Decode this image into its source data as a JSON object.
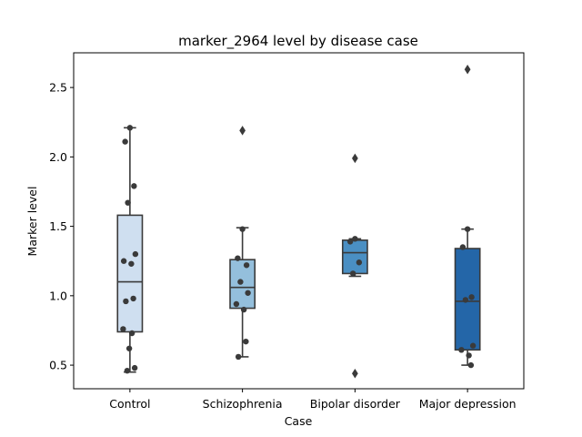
{
  "chart_data": {
    "type": "box",
    "title": "marker_2964 level by disease case",
    "xlabel": "Case",
    "ylabel": "Marker level",
    "ylim": [
      0.33,
      2.75
    ],
    "yticks": [
      0.5,
      1.0,
      1.5,
      2.0,
      2.5
    ],
    "ytick_labels": [
      "0.5",
      "1.0",
      "1.5",
      "2.0",
      "2.5"
    ],
    "grid": false,
    "categories": [
      "Control",
      "Schizophrenia",
      "Bipolar disorder",
      "Major depression"
    ],
    "colors": [
      "#cfdff0",
      "#94bfdc",
      "#4a8fc3",
      "#2466a8"
    ],
    "edge_color": "#3a3a3a",
    "point_color": "#3a3a3a",
    "boxes": [
      {
        "q1": 0.74,
        "median": 1.1,
        "q3": 1.58,
        "whisker_low": 0.45,
        "whisker_high": 2.21,
        "outliers": []
      },
      {
        "q1": 0.91,
        "median": 1.06,
        "q3": 1.26,
        "whisker_low": 0.56,
        "whisker_high": 1.49,
        "outliers": [
          2.19
        ]
      },
      {
        "q1": 1.16,
        "median": 1.31,
        "q3": 1.4,
        "whisker_low": 1.14,
        "whisker_high": 1.41,
        "outliers": [
          1.99,
          0.44
        ]
      },
      {
        "q1": 0.61,
        "median": 0.96,
        "q3": 1.34,
        "whisker_low": 0.5,
        "whisker_high": 1.48,
        "outliers": [
          2.63
        ]
      }
    ],
    "points": [
      [
        2.21,
        2.11,
        1.79,
        1.67,
        1.3,
        1.25,
        1.23,
        0.98,
        0.96,
        0.76,
        0.73,
        0.62,
        0.48,
        0.46
      ],
      [
        1.48,
        1.27,
        1.22,
        1.1,
        1.02,
        0.94,
        0.9,
        0.67,
        0.56
      ],
      [
        1.41,
        1.39,
        1.24,
        1.16
      ],
      [
        1.48,
        1.35,
        0.99,
        0.97,
        0.64,
        0.61,
        0.57,
        0.5
      ]
    ]
  }
}
